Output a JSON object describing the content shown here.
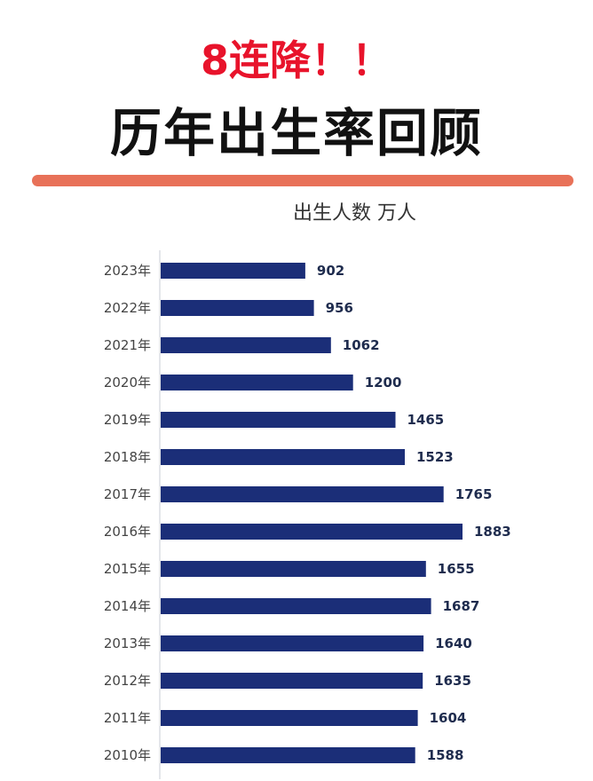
{
  "header": {
    "subtitle": "8连降！！",
    "title": "历年出生率回顾"
  },
  "colors": {
    "subtitle": "#e8132b",
    "title": "#111111",
    "divider": "#e87158",
    "bar": "#1b2e78",
    "value_text": "#1f2c4e"
  },
  "chart_data": {
    "type": "bar",
    "orientation": "horizontal",
    "unit_label": "出生人数 万人",
    "categories": [
      "2023年",
      "2022年",
      "2021年",
      "2020年",
      "2019年",
      "2018年",
      "2017年",
      "2016年",
      "2015年",
      "2014年",
      "2013年",
      "2012年",
      "2011年",
      "2010年"
    ],
    "values": [
      902,
      956,
      1062,
      1200,
      1465,
      1523,
      1765,
      1883,
      1655,
      1687,
      1640,
      1635,
      1604,
      1588
    ],
    "data_labels": [
      "902",
      "956",
      "1062",
      "1200",
      "1465",
      "1523",
      "1765",
      "1883",
      "1655",
      "1687",
      "1640",
      "1635",
      "1604",
      "1588"
    ],
    "xlim": [
      0,
      1883
    ],
    "grid": false,
    "legend": "none"
  }
}
